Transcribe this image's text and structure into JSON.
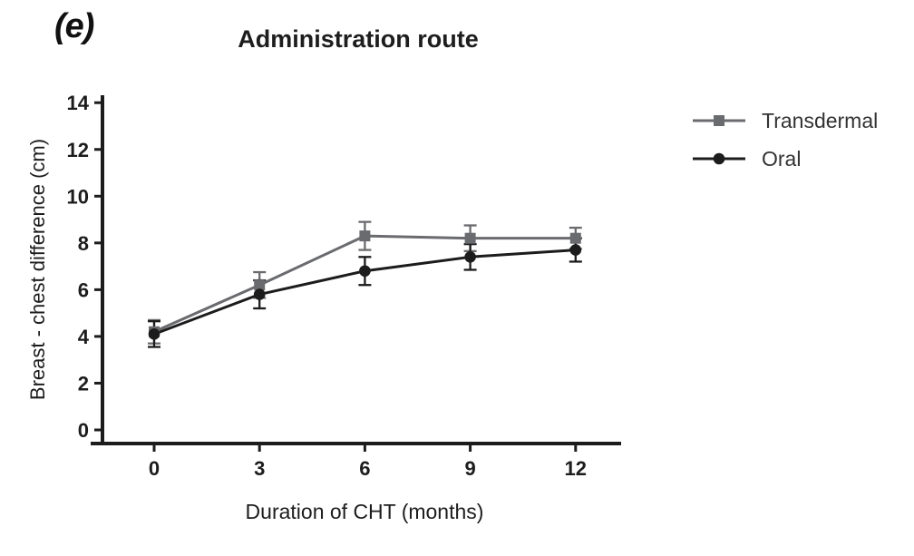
{
  "panel_label": "(e)",
  "chart_data": {
    "type": "line",
    "title": "Administration route",
    "xlabel": "Duration of CHT (months)",
    "ylabel": "Breast - chest difference (cm)",
    "x": [
      0,
      3,
      6,
      9,
      12
    ],
    "xticks": [
      0,
      3,
      6,
      9,
      12
    ],
    "yticks": [
      0,
      2,
      4,
      6,
      8,
      10,
      12,
      14
    ],
    "xlim": [
      0,
      12
    ],
    "ylim": [
      0,
      14
    ],
    "grid": false,
    "legend_position": "right",
    "error_bars": true,
    "axis_color": "#1c1c1c",
    "series": [
      {
        "name": "Transdermal",
        "marker": "square",
        "color": "#6a6b6e",
        "values": [
          4.2,
          6.2,
          8.3,
          8.2,
          8.2
        ],
        "errors": [
          0.5,
          0.55,
          0.6,
          0.55,
          0.45
        ]
      },
      {
        "name": "Oral",
        "marker": "circle",
        "color": "#1c1c1c",
        "values": [
          4.1,
          5.8,
          6.8,
          7.4,
          7.7
        ],
        "errors": [
          0.55,
          0.6,
          0.6,
          0.55,
          0.5
        ]
      }
    ]
  }
}
